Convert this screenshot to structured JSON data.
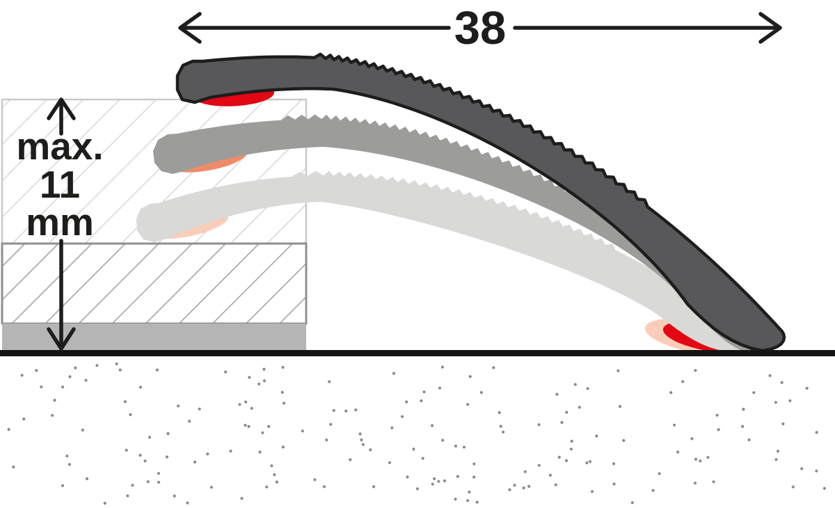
{
  "diagram": {
    "description": "floor transition profile height adjustment diagram",
    "width_dimension_label": "38",
    "height_dimension_label_line1": "max.",
    "height_dimension_label_line2": "11",
    "height_dimension_label_line3": "mm",
    "colors": {
      "ink": "#1d1d1b",
      "profile_dark": "#58585a",
      "profile_medium": "#9c9c9b",
      "profile_light": "#d9d9d8",
      "lip_red": "#e30613",
      "lip_orange": "#f08a68",
      "lip_pale": "#f9cdb8",
      "hatch_light_line": "#d9d9d9",
      "hatch_medium_line": "#a8a8a8",
      "box_border_light": "#c9c9c9",
      "box_border_medium": "#8f8f8f",
      "underlay_gray": "#b5b5b5",
      "ground_black": "#141414",
      "stipple_dot": "#8a8a8a",
      "background": "#ffffff"
    }
  }
}
